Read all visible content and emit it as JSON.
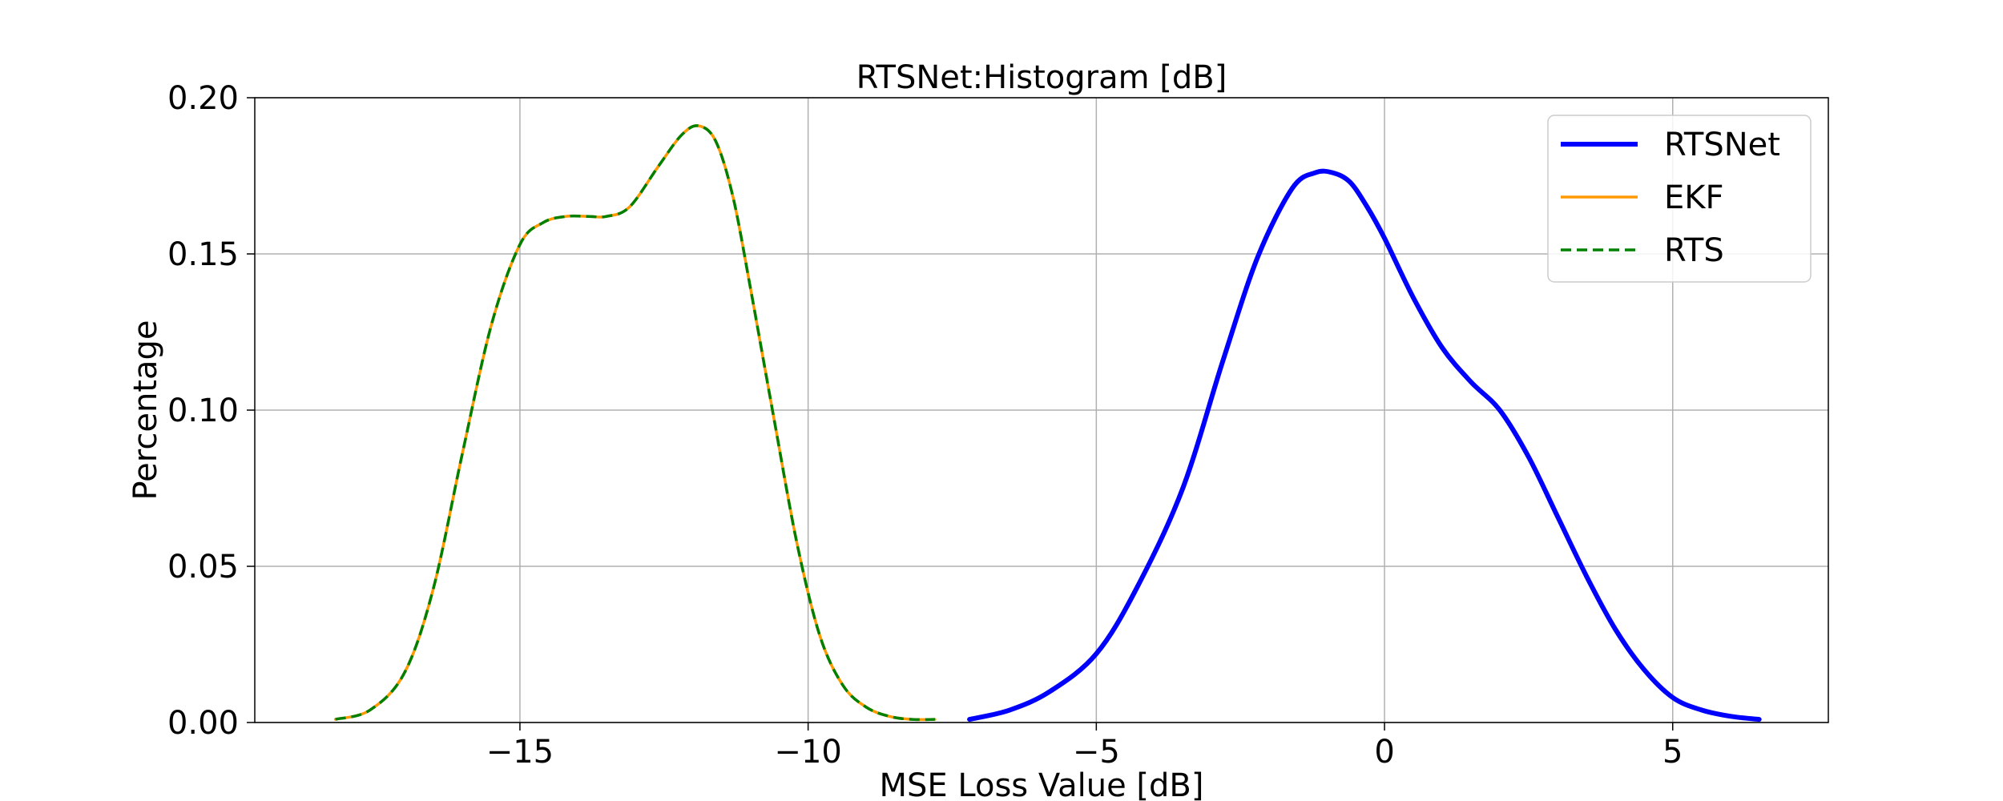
{
  "chart_data": {
    "type": "line",
    "title": "RTSNet:Histogram [dB]",
    "xlabel": "MSE Loss Value [dB]",
    "ylabel": "Percentage",
    "xlim": [
      -19.6,
      7.7
    ],
    "ylim": [
      0,
      0.2
    ],
    "x_ticks": [
      -15,
      -10,
      -5,
      0,
      5
    ],
    "x_tick_labels": [
      "−15",
      "−10",
      "−5",
      "0",
      "5"
    ],
    "y_ticks": [
      0,
      0.05,
      0.1,
      0.15,
      0.2
    ],
    "y_tick_labels": [
      "0.00",
      "0.05",
      "0.10",
      "0.15",
      "0.20"
    ],
    "grid": true,
    "legend_position": "top-right",
    "series": [
      {
        "name": "RTSNet",
        "color": "#0000ff",
        "style": "solid-thick",
        "x": [
          -7.2,
          -6.5,
          -5.8,
          -5.0,
          -4.3,
          -3.5,
          -2.8,
          -2.2,
          -1.6,
          -1.2,
          -0.9,
          -0.6,
          -0.3,
          0.0,
          0.5,
          1.0,
          1.5,
          2.0,
          2.5,
          3.0,
          3.5,
          4.0,
          4.5,
          5.0,
          5.5,
          6.0,
          6.5
        ],
        "y": [
          0.001,
          0.004,
          0.01,
          0.022,
          0.043,
          0.075,
          0.116,
          0.149,
          0.171,
          0.176,
          0.176,
          0.173,
          0.165,
          0.155,
          0.136,
          0.12,
          0.109,
          0.1,
          0.085,
          0.066,
          0.047,
          0.03,
          0.017,
          0.008,
          0.004,
          0.002,
          0.001
        ]
      },
      {
        "name": "EKF",
        "color": "#ff9900",
        "style": "solid-thin",
        "x": [
          -18.2,
          -17.6,
          -17.0,
          -16.5,
          -16.0,
          -15.5,
          -15.0,
          -14.6,
          -14.2,
          -13.8,
          -13.5,
          -13.1,
          -12.6,
          -12.2,
          -11.9,
          -11.6,
          -11.3,
          -11.0,
          -10.6,
          -10.2,
          -9.8,
          -9.4,
          -9.0,
          -8.6,
          -8.2,
          -7.8
        ],
        "y": [
          0.001,
          0.004,
          0.016,
          0.043,
          0.086,
          0.127,
          0.153,
          0.16,
          0.162,
          0.162,
          0.162,
          0.165,
          0.178,
          0.188,
          0.191,
          0.186,
          0.168,
          0.139,
          0.098,
          0.058,
          0.028,
          0.012,
          0.005,
          0.002,
          0.001,
          0.001
        ]
      },
      {
        "name": "RTS",
        "color": "#008000",
        "style": "dashed",
        "x": [
          -18.2,
          -17.6,
          -17.0,
          -16.5,
          -16.0,
          -15.5,
          -15.0,
          -14.6,
          -14.2,
          -13.8,
          -13.5,
          -13.1,
          -12.6,
          -12.2,
          -11.9,
          -11.6,
          -11.3,
          -11.0,
          -10.6,
          -10.2,
          -9.8,
          -9.4,
          -9.0,
          -8.6,
          -8.2,
          -7.8
        ],
        "y": [
          0.001,
          0.004,
          0.016,
          0.043,
          0.086,
          0.127,
          0.153,
          0.16,
          0.162,
          0.162,
          0.162,
          0.165,
          0.178,
          0.188,
          0.191,
          0.186,
          0.168,
          0.139,
          0.098,
          0.058,
          0.028,
          0.012,
          0.005,
          0.002,
          0.001,
          0.001
        ]
      }
    ]
  }
}
